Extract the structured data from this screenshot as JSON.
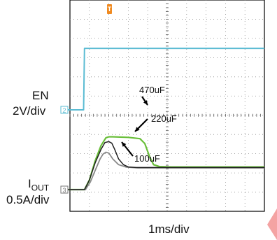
{
  "chart_data": {
    "type": "line",
    "title": "",
    "time_scale": "1ms/div",
    "grid": true,
    "colors": {
      "en": "#5bbcd3",
      "c470": "#6abf3a",
      "c220": "#202020",
      "c100": "#8a8a8a",
      "trigger_marker": "#f08a20",
      "grid": "#888888"
    },
    "channels": [
      {
        "id": "en",
        "label": "EN",
        "scale": "2V/div",
        "marker": "2",
        "x_div": [
          -0.4,
          0.6,
          0.7,
          0.75,
          0.9,
          10
        ],
        "y_div": [
          0,
          0,
          0,
          3.2,
          3.2,
          3.2
        ]
      },
      {
        "id": "iout",
        "label_main": "I",
        "label_sub": "OUT",
        "scale": "0.5A/div",
        "marker": "3"
      }
    ],
    "series": [
      {
        "name": "470uF",
        "color_key": "c470",
        "x_div": [
          -0.4,
          0.75,
          1.0,
          1.3,
          1.6,
          1.85,
          2.0,
          2.2,
          3.0,
          3.6,
          3.85,
          4.1,
          4.3,
          4.6,
          5.2,
          10
        ],
        "y_div": [
          0,
          0,
          0.5,
          1.5,
          2.3,
          2.7,
          2.75,
          2.75,
          2.72,
          2.65,
          2.4,
          1.7,
          1.3,
          1.2,
          1.18,
          1.18
        ]
      },
      {
        "name": "220uF",
        "color_key": "c220",
        "x_div": [
          -0.4,
          0.75,
          1.0,
          1.3,
          1.6,
          1.8,
          2.0,
          2.15,
          2.3,
          2.5,
          2.75,
          3.0,
          3.4,
          4.0,
          10
        ],
        "y_div": [
          0,
          0,
          0.5,
          1.4,
          2.1,
          2.45,
          2.5,
          2.42,
          2.1,
          1.6,
          1.3,
          1.18,
          1.15,
          1.15,
          1.15
        ]
      },
      {
        "name": "100uF",
        "color_key": "c100",
        "x_div": [
          -0.4,
          0.8,
          1.05,
          1.3,
          1.55,
          1.7,
          1.85,
          2.0,
          2.2,
          2.5,
          2.9,
          3.5,
          10
        ],
        "y_div": [
          0,
          0,
          0.4,
          1.0,
          1.6,
          1.85,
          1.95,
          1.9,
          1.6,
          1.3,
          1.17,
          1.13,
          1.13
        ]
      }
    ],
    "annotations": [
      {
        "text": "470uF",
        "points_to": "470uF"
      },
      {
        "text": "220uF",
        "points_to": "220uF"
      },
      {
        "text": "100uF",
        "points_to": "100uF"
      }
    ]
  },
  "trigger_marker": "T"
}
